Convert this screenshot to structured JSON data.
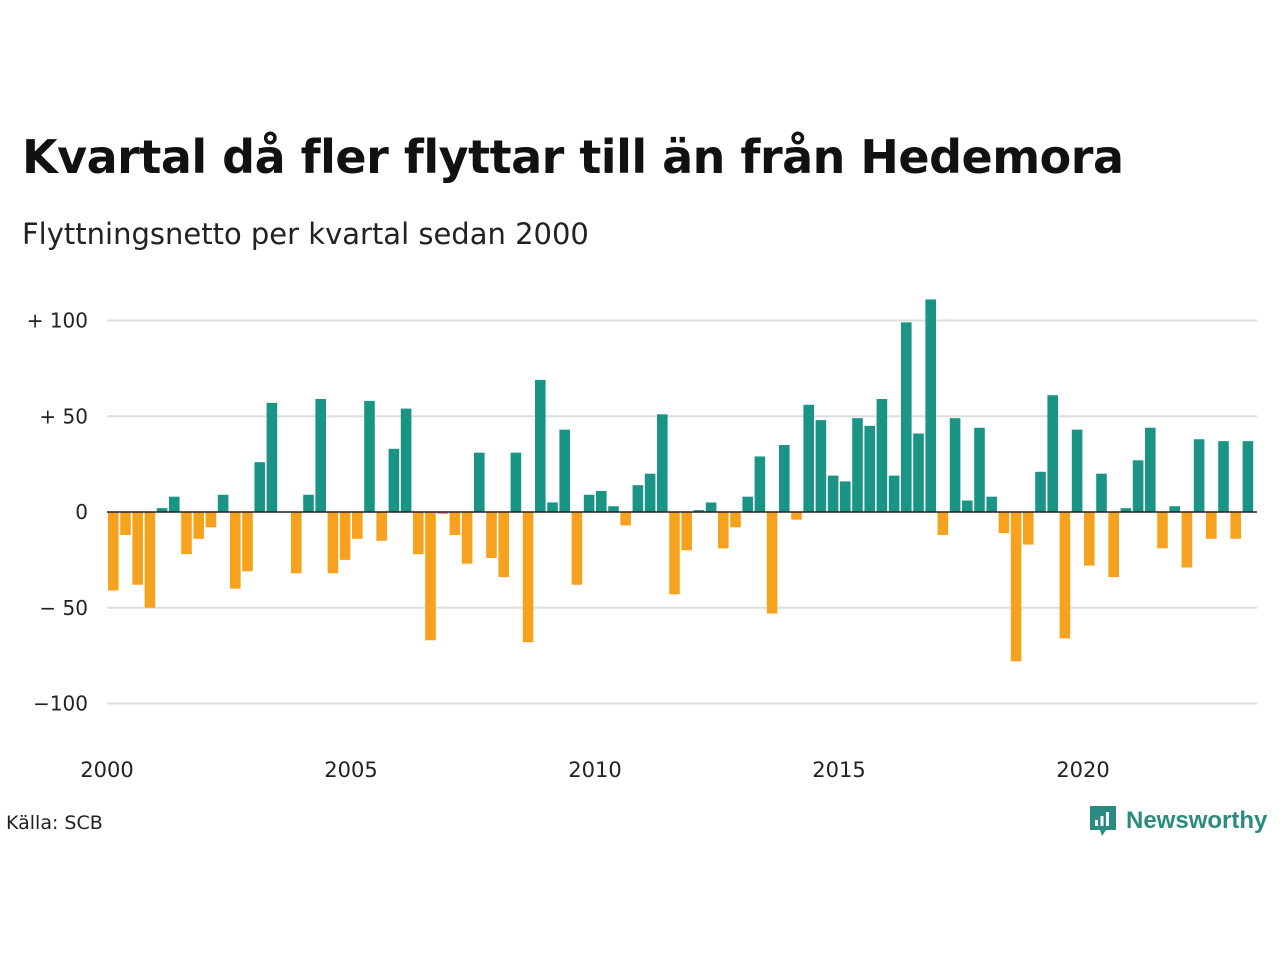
{
  "title": "Kvartal då fler flyttar till än från Hedemora",
  "subtitle": "Flyttningsnetto per kvartal sedan 2000",
  "source": "Källa: SCB",
  "brand": "Newsworthy",
  "colors": {
    "positive": "#1a9585",
    "negative": "#f6a21e",
    "grid": "#dddddd",
    "zero": "#222222"
  },
  "chart_data": {
    "type": "bar",
    "ylim": [
      -120,
      115
    ],
    "yticks": [
      {
        "value": 100,
        "label": "+ 100"
      },
      {
        "value": 50,
        "label": "+  50"
      },
      {
        "value": 0,
        "label": "0"
      },
      {
        "value": -50,
        "label": "− 50"
      },
      {
        "value": -100,
        "label": "−100"
      }
    ],
    "xticks": [
      "2000",
      "2005",
      "2010",
      "2015",
      "2020"
    ],
    "start_year": 2000,
    "quarters_per_year": 4,
    "grid": true,
    "values": [
      -41,
      -12,
      -38,
      -50,
      2,
      8,
      -22,
      -14,
      -8,
      9,
      -40,
      -31,
      26,
      57,
      0,
      -32,
      9,
      59,
      -32,
      -25,
      -14,
      58,
      -15,
      33,
      54,
      -22,
      -67,
      -1,
      -12,
      -27,
      31,
      -24,
      -34,
      31,
      -68,
      69,
      5,
      43,
      -38,
      9,
      11,
      3,
      -7,
      14,
      20,
      51,
      -43,
      -20,
      1,
      5,
      -19,
      -8,
      8,
      29,
      -53,
      35,
      -4,
      56,
      48,
      19,
      16,
      49,
      45,
      59,
      19,
      99,
      41,
      111,
      -12,
      49,
      6,
      44,
      8,
      -11,
      -78,
      -17,
      21,
      61,
      -66,
      43,
      -28,
      20,
      -34,
      2,
      27,
      44,
      -19,
      3,
      -29,
      38,
      -14,
      37,
      -14,
      37
    ]
  }
}
